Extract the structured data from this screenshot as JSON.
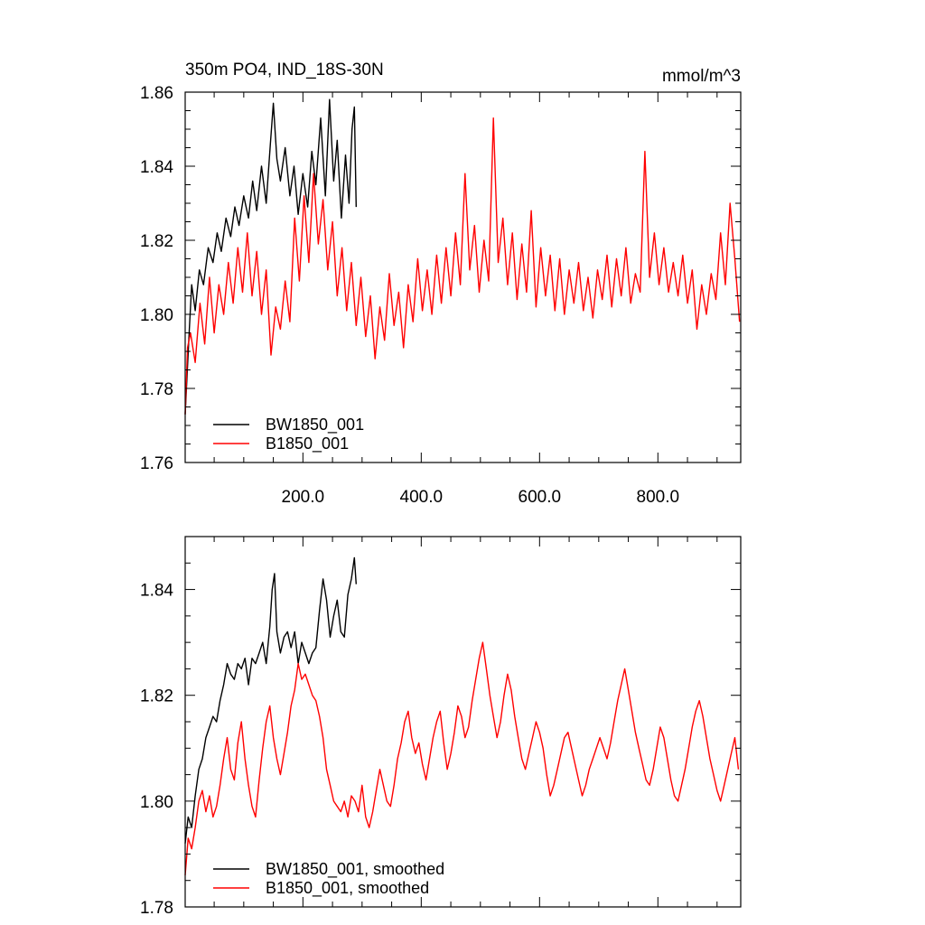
{
  "figure": {
    "title_left": "350m PO4, IND_18S-30N",
    "title_right": "mmol/m^3"
  },
  "chart_data": [
    {
      "type": "line",
      "panel": "top",
      "title": "350m PO4, IND_18S-30N",
      "units": "mmol/m^3",
      "xlim": [
        1,
        940
      ],
      "ylim": [
        1.76,
        1.86
      ],
      "x_ticks": [
        200,
        400,
        600,
        800
      ],
      "x_tick_labels": [
        "200.0",
        "400.0",
        "600.0",
        "800.0"
      ],
      "y_ticks": [
        1.76,
        1.78,
        1.8,
        1.82,
        1.84,
        1.86
      ],
      "y_tick_labels": [
        "1.76",
        "1.78",
        "1.80",
        "1.82",
        "1.84",
        "1.86"
      ],
      "legend": [
        "BW1850_001",
        "B1850_001"
      ],
      "legend_position": "bottom-left",
      "series": [
        {
          "name": "BW1850_001",
          "color": "#000000",
          "x": [
            1,
            8,
            12,
            18,
            25,
            32,
            40,
            48,
            55,
            62,
            70,
            78,
            85,
            92,
            100,
            108,
            115,
            122,
            130,
            138,
            145,
            150,
            156,
            162,
            170,
            178,
            185,
            192,
            200,
            208,
            215,
            222,
            230,
            238,
            245,
            252,
            258,
            265,
            272,
            278,
            283,
            287,
            290
          ],
          "values": [
            1.773,
            1.796,
            1.808,
            1.801,
            1.812,
            1.808,
            1.818,
            1.814,
            1.822,
            1.817,
            1.826,
            1.821,
            1.829,
            1.824,
            1.832,
            1.826,
            1.836,
            1.828,
            1.84,
            1.83,
            1.846,
            1.857,
            1.842,
            1.836,
            1.845,
            1.832,
            1.84,
            1.827,
            1.838,
            1.829,
            1.844,
            1.835,
            1.853,
            1.832,
            1.858,
            1.836,
            1.847,
            1.826,
            1.843,
            1.83,
            1.85,
            1.856,
            1.829
          ]
        },
        {
          "name": "B1850_001",
          "color": "#ff0000",
          "x": [
            1,
            5,
            10,
            18,
            26,
            34,
            42,
            50,
            58,
            66,
            74,
            82,
            90,
            98,
            106,
            114,
            122,
            130,
            138,
            146,
            154,
            162,
            170,
            178,
            186,
            194,
            202,
            210,
            218,
            226,
            234,
            242,
            250,
            258,
            266,
            274,
            282,
            290,
            298,
            306,
            314,
            322,
            330,
            338,
            346,
            354,
            362,
            370,
            378,
            386,
            394,
            402,
            410,
            418,
            426,
            434,
            442,
            450,
            458,
            466,
            474,
            482,
            490,
            498,
            506,
            514,
            522,
            530,
            538,
            546,
            554,
            562,
            570,
            578,
            586,
            594,
            602,
            610,
            618,
            626,
            634,
            642,
            650,
            658,
            666,
            674,
            682,
            690,
            698,
            706,
            714,
            722,
            730,
            738,
            746,
            754,
            762,
            770,
            778,
            786,
            794,
            802,
            810,
            818,
            826,
            834,
            842,
            850,
            858,
            866,
            874,
            882,
            890,
            898,
            906,
            914,
            922,
            930,
            938
          ],
          "values": [
            1.773,
            1.791,
            1.795,
            1.787,
            1.803,
            1.792,
            1.81,
            1.795,
            1.808,
            1.8,
            1.814,
            1.803,
            1.818,
            1.806,
            1.822,
            1.805,
            1.817,
            1.8,
            1.812,
            1.789,
            1.802,
            1.796,
            1.809,
            1.798,
            1.826,
            1.809,
            1.832,
            1.814,
            1.838,
            1.819,
            1.831,
            1.812,
            1.825,
            1.805,
            1.818,
            1.801,
            1.814,
            1.797,
            1.81,
            1.794,
            1.805,
            1.788,
            1.802,
            1.793,
            1.811,
            1.797,
            1.806,
            1.791,
            1.808,
            1.798,
            1.815,
            1.801,
            1.812,
            1.8,
            1.816,
            1.803,
            1.818,
            1.805,
            1.822,
            1.808,
            1.838,
            1.812,
            1.824,
            1.806,
            1.82,
            1.809,
            1.853,
            1.814,
            1.826,
            1.808,
            1.822,
            1.804,
            1.819,
            1.806,
            1.828,
            1.802,
            1.818,
            1.805,
            1.816,
            1.801,
            1.815,
            1.8,
            1.812,
            1.803,
            1.814,
            1.801,
            1.81,
            1.799,
            1.812,
            1.804,
            1.816,
            1.802,
            1.815,
            1.805,
            1.818,
            1.803,
            1.811,
            1.806,
            1.844,
            1.81,
            1.822,
            1.808,
            1.818,
            1.806,
            1.814,
            1.805,
            1.816,
            1.803,
            1.812,
            1.796,
            1.808,
            1.8,
            1.811,
            1.804,
            1.822,
            1.808,
            1.83,
            1.815,
            1.798
          ]
        }
      ]
    },
    {
      "type": "line",
      "panel": "bottom",
      "xlim": [
        1,
        940
      ],
      "ylim": [
        1.78,
        1.85
      ],
      "x_ticks": [],
      "y_ticks": [
        1.78,
        1.8,
        1.82,
        1.84
      ],
      "y_tick_labels": [
        "1.78",
        "1.80",
        "1.82",
        "1.84"
      ],
      "legend": [
        "BW1850_001, smoothed",
        "B1850_001, smoothed"
      ],
      "legend_position": "bottom-left",
      "series": [
        {
          "name": "BW1850_001, smoothed",
          "color": "#000000",
          "x": [
            1,
            6,
            12,
            18,
            24,
            30,
            36,
            42,
            48,
            54,
            60,
            66,
            72,
            78,
            84,
            90,
            96,
            102,
            108,
            114,
            120,
            126,
            132,
            138,
            144,
            148,
            152,
            156,
            162,
            168,
            174,
            180,
            186,
            192,
            198,
            204,
            210,
            216,
            222,
            228,
            234,
            240,
            246,
            252,
            258,
            264,
            270,
            276,
            282,
            287,
            290
          ],
          "values": [
            1.792,
            1.797,
            1.795,
            1.801,
            1.806,
            1.808,
            1.812,
            1.814,
            1.816,
            1.815,
            1.819,
            1.822,
            1.826,
            1.824,
            1.823,
            1.826,
            1.825,
            1.827,
            1.822,
            1.827,
            1.826,
            1.828,
            1.83,
            1.826,
            1.833,
            1.84,
            1.843,
            1.832,
            1.828,
            1.831,
            1.832,
            1.829,
            1.832,
            1.826,
            1.83,
            1.828,
            1.826,
            1.828,
            1.829,
            1.836,
            1.842,
            1.838,
            1.831,
            1.835,
            1.838,
            1.832,
            1.831,
            1.839,
            1.842,
            1.846,
            1.841
          ]
        },
        {
          "name": "B1850_001, smoothed",
          "color": "#ff0000",
          "x": [
            1,
            6,
            12,
            18,
            24,
            30,
            36,
            42,
            48,
            54,
            60,
            66,
            72,
            78,
            84,
            90,
            96,
            102,
            108,
            114,
            120,
            126,
            132,
            138,
            144,
            150,
            156,
            162,
            168,
            174,
            180,
            186,
            192,
            198,
            204,
            210,
            216,
            222,
            228,
            234,
            240,
            246,
            252,
            258,
            264,
            270,
            276,
            282,
            288,
            294,
            300,
            306,
            312,
            318,
            324,
            330,
            336,
            342,
            348,
            354,
            360,
            366,
            372,
            378,
            384,
            390,
            396,
            402,
            408,
            414,
            420,
            426,
            432,
            438,
            444,
            450,
            456,
            462,
            468,
            474,
            480,
            486,
            492,
            498,
            504,
            510,
            516,
            522,
            528,
            534,
            540,
            546,
            552,
            558,
            564,
            570,
            576,
            582,
            588,
            594,
            600,
            606,
            612,
            618,
            624,
            630,
            636,
            642,
            648,
            654,
            660,
            666,
            672,
            678,
            684,
            690,
            696,
            702,
            708,
            714,
            720,
            726,
            732,
            738,
            744,
            750,
            756,
            762,
            768,
            774,
            780,
            786,
            792,
            798,
            804,
            810,
            816,
            822,
            828,
            834,
            840,
            846,
            852,
            858,
            864,
            870,
            876,
            882,
            888,
            894,
            900,
            906,
            912,
            918,
            924,
            930,
            936
          ],
          "values": [
            1.786,
            1.793,
            1.791,
            1.795,
            1.8,
            1.802,
            1.798,
            1.801,
            1.797,
            1.799,
            1.803,
            1.808,
            1.812,
            1.806,
            1.804,
            1.811,
            1.815,
            1.808,
            1.803,
            1.799,
            1.797,
            1.804,
            1.81,
            1.815,
            1.818,
            1.812,
            1.808,
            1.805,
            1.809,
            1.813,
            1.818,
            1.821,
            1.826,
            1.823,
            1.824,
            1.822,
            1.82,
            1.819,
            1.816,
            1.812,
            1.806,
            1.803,
            1.8,
            1.799,
            1.798,
            1.8,
            1.797,
            1.801,
            1.8,
            1.798,
            1.803,
            1.797,
            1.795,
            1.798,
            1.802,
            1.806,
            1.803,
            1.8,
            1.799,
            1.803,
            1.808,
            1.811,
            1.815,
            1.817,
            1.812,
            1.809,
            1.811,
            1.807,
            1.804,
            1.808,
            1.812,
            1.815,
            1.817,
            1.811,
            1.806,
            1.809,
            1.813,
            1.818,
            1.816,
            1.812,
            1.814,
            1.819,
            1.823,
            1.827,
            1.83,
            1.825,
            1.82,
            1.816,
            1.812,
            1.815,
            1.82,
            1.824,
            1.821,
            1.816,
            1.812,
            1.808,
            1.806,
            1.809,
            1.812,
            1.815,
            1.813,
            1.81,
            1.805,
            1.801,
            1.803,
            1.806,
            1.809,
            1.812,
            1.813,
            1.81,
            1.807,
            1.804,
            1.801,
            1.803,
            1.806,
            1.808,
            1.81,
            1.812,
            1.81,
            1.808,
            1.811,
            1.815,
            1.819,
            1.822,
            1.825,
            1.821,
            1.817,
            1.813,
            1.81,
            1.807,
            1.804,
            1.803,
            1.806,
            1.81,
            1.814,
            1.812,
            1.808,
            1.804,
            1.801,
            1.8,
            1.803,
            1.806,
            1.81,
            1.814,
            1.817,
            1.819,
            1.816,
            1.812,
            1.808,
            1.805,
            1.802,
            1.8,
            1.803,
            1.806,
            1.809,
            1.812,
            1.806
          ]
        }
      ]
    }
  ]
}
